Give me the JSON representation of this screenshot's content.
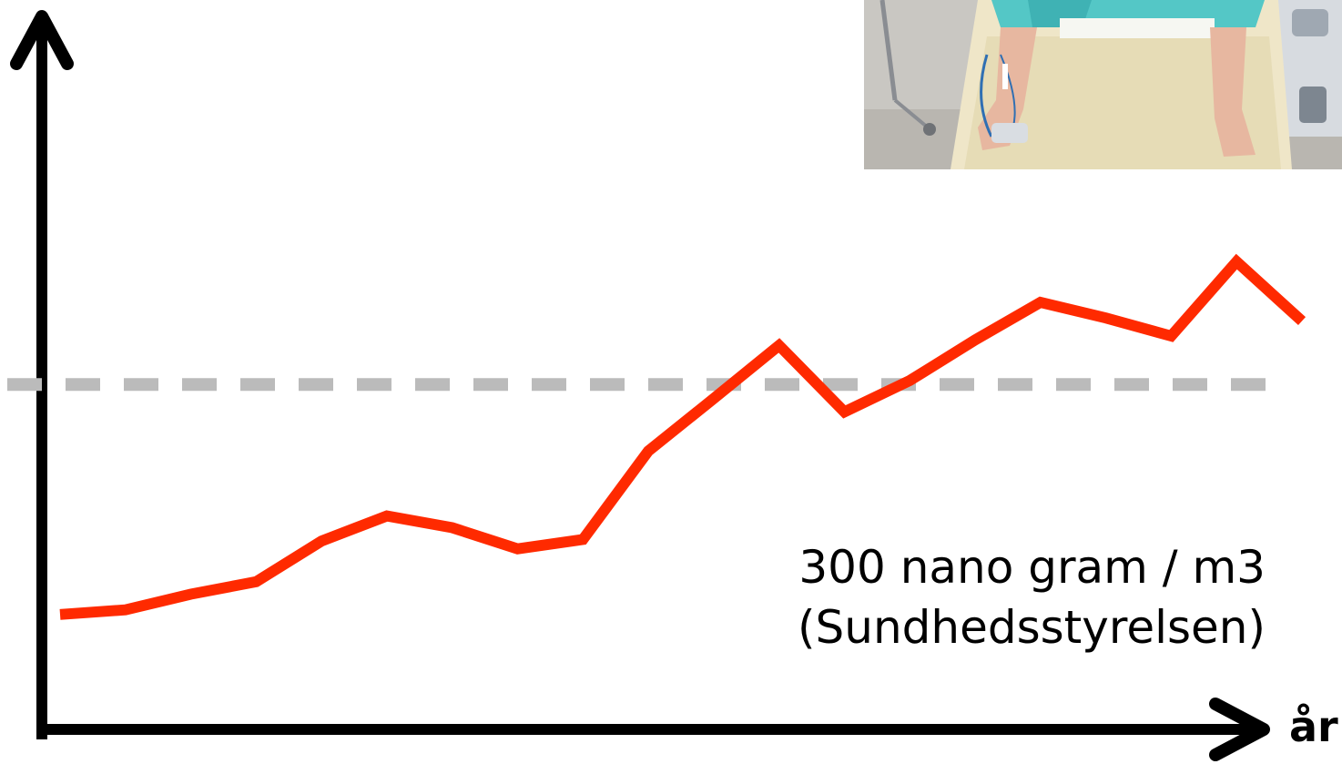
{
  "chart_data": {
    "type": "line",
    "title": "",
    "xlabel": "år",
    "ylabel": "",
    "x": [
      1,
      2,
      3,
      4,
      5,
      6,
      7,
      8,
      9,
      10,
      11,
      12,
      13,
      14,
      15,
      16,
      17,
      18,
      19,
      20
    ],
    "series": [
      {
        "values": [
          6,
          12,
          32,
          48,
          100,
          132,
          117,
          90,
          102,
          215,
          282,
          350,
          265,
          305,
          357,
          405,
          385,
          362,
          457,
          381
        ]
      }
    ],
    "ylim": [
      0,
      760
    ],
    "grid": false,
    "threshold": {
      "value": 300,
      "label_line1": "300 nano gram / m3",
      "label_line2": "(Sundhedsstyrelsen)"
    },
    "colors": {
      "series": "#ff2a00",
      "threshold": "#bbbbbb",
      "axes": "#000000"
    }
  },
  "photo": {
    "subject": "hospital-patient-in-bed"
  }
}
